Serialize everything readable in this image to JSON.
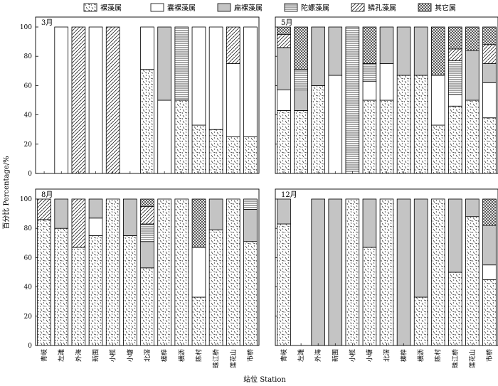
{
  "chart_data": {
    "type": "bar",
    "stacked": true,
    "xlabel": "站位  Station",
    "ylabel": "百分比 Percentage/%",
    "ylim": [
      0,
      100
    ],
    "yticks": [
      0,
      20,
      40,
      60,
      80,
      100
    ],
    "legend": {
      "placement": "top",
      "items": [
        {
          "name": "裸藻属",
          "pattern": "dashes"
        },
        {
          "name": "囊裸藻属",
          "pattern": "blank"
        },
        {
          "name": "扁裸藻属",
          "pattern": "gray"
        },
        {
          "name": "陀螺藻属",
          "pattern": "horizontal-lines"
        },
        {
          "name": "鳞孔藻属",
          "pattern": "diagonal"
        },
        {
          "name": "其它属",
          "pattern": "crosshatch"
        }
      ]
    },
    "panels": [
      {
        "title": "3月",
        "categories": [
          "青岐",
          "左滩",
          "外海",
          "新围",
          "小榄",
          "小塘",
          "北滘",
          "槎梓",
          "横沥",
          "陈村",
          "珠江桥",
          "莲花山",
          "市桥"
        ],
        "series": [
          {
            "name": "裸藻属",
            "values": [
              0,
              0,
              0,
              0,
              0,
              0,
              71,
              0,
              50,
              33,
              30,
              25,
              25
            ]
          },
          {
            "name": "囊裸藻属",
            "values": [
              0,
              100,
              0,
              100,
              0,
              0,
              29,
              50,
              0,
              67,
              70,
              50,
              75
            ]
          },
          {
            "name": "扁裸藻属",
            "values": [
              0,
              0,
              0,
              0,
              0,
              0,
              0,
              50,
              0,
              0,
              0,
              0,
              0
            ]
          },
          {
            "name": "陀螺藻属",
            "values": [
              0,
              0,
              0,
              0,
              0,
              0,
              0,
              0,
              50,
              0,
              0,
              0,
              0
            ]
          },
          {
            "name": "鳞孔藻属",
            "values": [
              0,
              0,
              100,
              0,
              100,
              0,
              0,
              0,
              0,
              0,
              0,
              25,
              0
            ]
          },
          {
            "name": "其它属",
            "values": [
              0,
              0,
              0,
              0,
              0,
              0,
              0,
              0,
              0,
              0,
              0,
              0,
              0
            ]
          }
        ]
      },
      {
        "title": "5月",
        "categories": [
          "青岐",
          "左滩",
          "外海",
          "新围",
          "小榄",
          "小塘",
          "北滘",
          "槎梓",
          "横沥",
          "陈村",
          "珠江桥",
          "莲花山",
          "市桥"
        ],
        "series": [
          {
            "name": "裸藻属",
            "values": [
              43,
              43,
              60,
              0,
              0,
              50,
              50,
              67,
              67,
              33,
              46,
              50,
              38
            ]
          },
          {
            "name": "囊裸藻属",
            "values": [
              14,
              0,
              0,
              67,
              0,
              13,
              25,
              0,
              0,
              34,
              8,
              0,
              24
            ]
          },
          {
            "name": "扁裸藻属",
            "values": [
              29,
              14,
              40,
              33,
              0,
              0,
              25,
              33,
              33,
              0,
              0,
              34,
              13
            ]
          },
          {
            "name": "陀螺藻属",
            "values": [
              0,
              14,
              0,
              0,
              100,
              12,
              0,
              0,
              0,
              0,
              23,
              0,
              0
            ]
          },
          {
            "name": "鳞孔藻属",
            "values": [
              9,
              0,
              0,
              0,
              0,
              0,
              0,
              0,
              0,
              0,
              8,
              0,
              13
            ]
          },
          {
            "name": "其它属",
            "values": [
              5,
              29,
              0,
              0,
              0,
              25,
              0,
              0,
              0,
              33,
              15,
              16,
              12
            ]
          }
        ]
      },
      {
        "title": "8月",
        "categories": [
          "青岐",
          "左滩",
          "外海",
          "新围",
          "小榄",
          "小塘",
          "北滘",
          "槎梓",
          "横沥",
          "陈村",
          "珠江桥",
          "莲花山",
          "市桥"
        ],
        "series": [
          {
            "name": "裸藻属",
            "values": [
              86,
              80,
              67,
              75,
              100,
              75,
              53,
              100,
              100,
              33,
              79,
              100,
              71
            ]
          },
          {
            "name": "囊裸藻属",
            "values": [
              0,
              0,
              0,
              12,
              0,
              0,
              0,
              0,
              0,
              34,
              0,
              0,
              0
            ]
          },
          {
            "name": "扁裸藻属",
            "values": [
              0,
              20,
              0,
              13,
              0,
              25,
              18,
              0,
              0,
              0,
              21,
              0,
              22
            ]
          },
          {
            "name": "陀螺藻属",
            "values": [
              0,
              0,
              0,
              0,
              0,
              0,
              12,
              0,
              0,
              0,
              0,
              0,
              7
            ]
          },
          {
            "name": "鳞孔藻属",
            "values": [
              14,
              0,
              33,
              0,
              0,
              0,
              12,
              0,
              0,
              0,
              0,
              0,
              0
            ]
          },
          {
            "name": "其它属",
            "values": [
              0,
              0,
              0,
              0,
              0,
              0,
              5,
              0,
              0,
              33,
              0,
              0,
              0
            ]
          }
        ]
      },
      {
        "title": "12月",
        "categories": [
          "青岐",
          "左滩",
          "外海",
          "新围",
          "小榄",
          "小塘",
          "北滘",
          "槎梓",
          "横沥",
          "陈村",
          "珠江桥",
          "莲花山",
          "市桥"
        ],
        "series": [
          {
            "name": "裸藻属",
            "values": [
              83,
              0,
              0,
              0,
              100,
              67,
              100,
              0,
              33,
              100,
              50,
              88,
              45
            ]
          },
          {
            "name": "囊裸藻属",
            "values": [
              0,
              0,
              0,
              0,
              0,
              0,
              0,
              0,
              0,
              0,
              0,
              0,
              10
            ]
          },
          {
            "name": "扁裸藻属",
            "values": [
              17,
              0,
              100,
              100,
              0,
              33,
              0,
              100,
              67,
              0,
              50,
              12,
              27
            ]
          },
          {
            "name": "陀螺藻属",
            "values": [
              0,
              0,
              0,
              0,
              0,
              0,
              0,
              0,
              0,
              0,
              0,
              0,
              0
            ]
          },
          {
            "name": "鳞孔藻属",
            "values": [
              0,
              0,
              0,
              0,
              0,
              0,
              0,
              0,
              0,
              0,
              0,
              0,
              0
            ]
          },
          {
            "name": "其它属",
            "values": [
              0,
              0,
              0,
              0,
              0,
              0,
              0,
              0,
              0,
              0,
              0,
              0,
              18
            ]
          }
        ]
      }
    ]
  }
}
